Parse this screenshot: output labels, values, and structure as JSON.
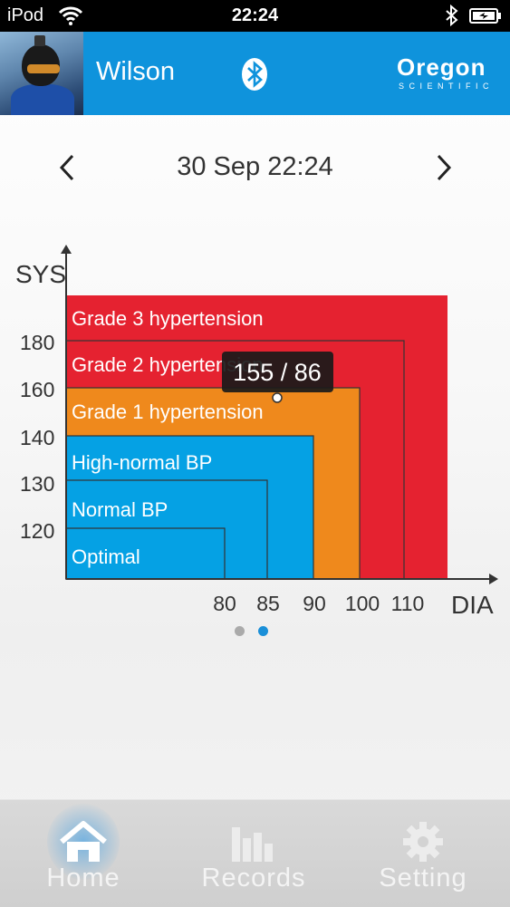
{
  "status_bar": {
    "carrier": "iPod",
    "time": "22:24"
  },
  "header": {
    "user_name": "Wilson",
    "brand": "Oregon",
    "brand_sub": "SCIENTIFIC"
  },
  "date_nav": {
    "date": "30 Sep 22:24"
  },
  "chart_data": {
    "type": "heatmap",
    "x_axis_label": "DIA",
    "y_axis_label": "SYS",
    "x_ticks": [
      "80",
      "85",
      "90",
      "100",
      "110"
    ],
    "y_ticks": [
      "120",
      "130",
      "140",
      "160",
      "180"
    ],
    "zones": [
      {
        "name": "Grade 3 hypertension",
        "color": "#e52230"
      },
      {
        "name": "Grade 2 hypertension",
        "color": "#e52230"
      },
      {
        "name": "Grade 1 hypertension",
        "color": "#ef891c"
      },
      {
        "name": "High-normal BP",
        "color": "#05a1e4"
      },
      {
        "name": "Normal BP",
        "color": "#05a1e4"
      },
      {
        "name": "Optimal",
        "color": "#05a1e4"
      }
    ],
    "reading": {
      "label": "155 / 86",
      "sys": 155,
      "dia": 86
    }
  },
  "pager": {
    "pages": 2,
    "current": 2
  },
  "tabs": [
    {
      "label": "Home",
      "icon": "home-icon",
      "active": true
    },
    {
      "label": "Records",
      "icon": "bar-chart-icon",
      "active": false
    },
    {
      "label": "Setting",
      "icon": "gear-icon",
      "active": false
    }
  ],
  "colors": {
    "header": "#0f93dc",
    "red": "#e52230",
    "orange": "#ef891c",
    "blue": "#05a1e4"
  }
}
